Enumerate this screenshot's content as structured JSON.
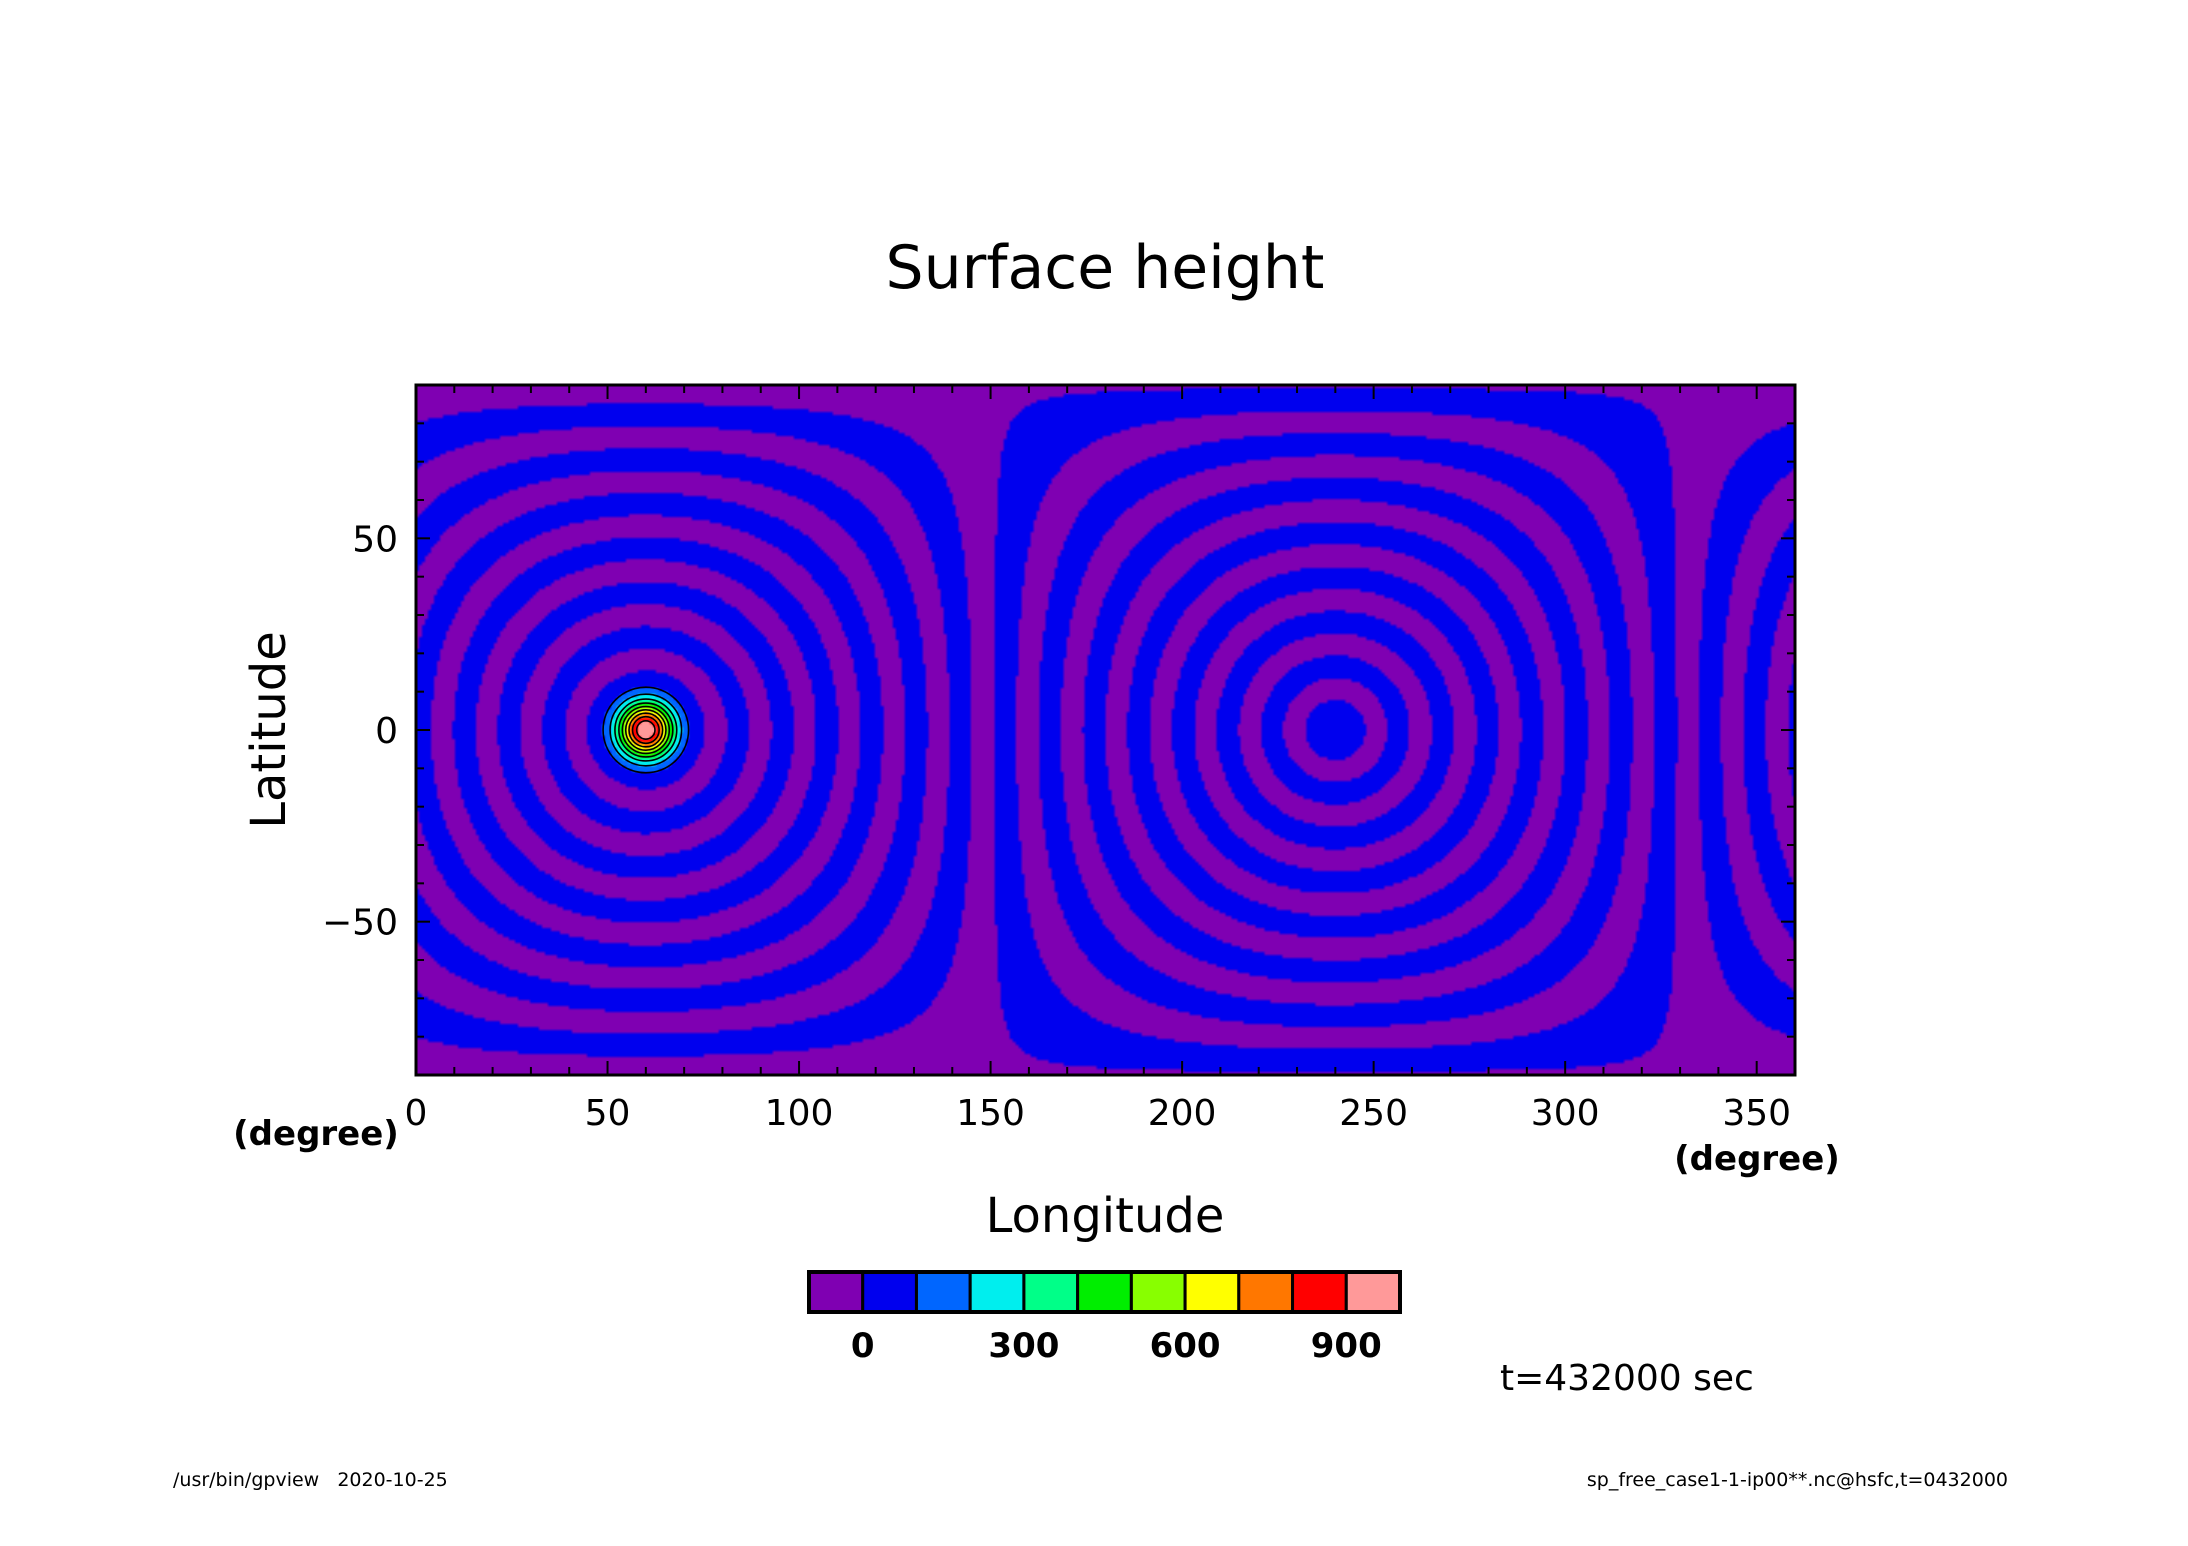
{
  "chart_data": {
    "type": "heatmap",
    "title": "Surface height",
    "xlabel": "Longitude",
    "ylabel": "Latitude",
    "x_unit": "(degree)",
    "y_unit": "(degree)",
    "xlim": [
      0,
      360
    ],
    "ylim": [
      -90,
      90
    ],
    "x_ticks": [
      0,
      50,
      100,
      150,
      200,
      250,
      300,
      350
    ],
    "y_ticks": [
      -50,
      0,
      50
    ],
    "features": [
      {
        "lon": 60,
        "lat": 0,
        "peak": 1000
      },
      {
        "lon": 240,
        "lat": 0
      }
    ],
    "colorbar": {
      "colors": [
        "#7f00b2",
        "#0000ee",
        "#0066ff",
        "#00eeee",
        "#00ff88",
        "#00ee00",
        "#88ff00",
        "#ffff00",
        "#ff7700",
        "#ff0000",
        "#ff9999"
      ],
      "tick_labels": [
        "0",
        "300",
        "600",
        "900"
      ]
    },
    "time_label": "t=432000 sec"
  },
  "footer": {
    "left": "/usr/bin/gpview   2020-10-25",
    "right": "sp_free_case1-1-ip00**.nc@hsfc,t=0432000"
  }
}
